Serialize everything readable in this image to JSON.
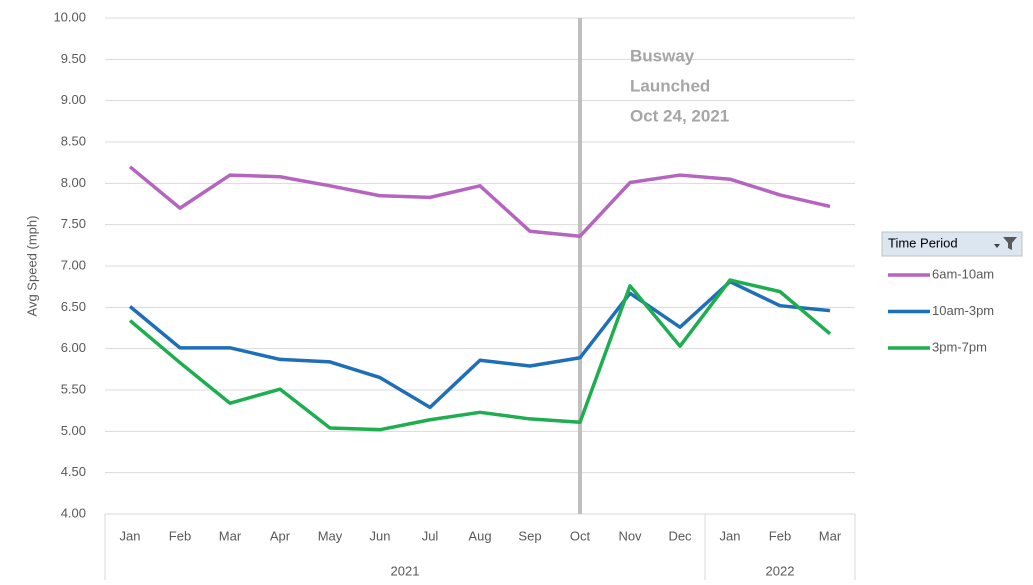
{
  "chart_data": {
    "type": "line",
    "ylabel": "Avg Speed (mph)",
    "categories": [
      "Jan",
      "Feb",
      "Mar",
      "Apr",
      "May",
      "Jun",
      "Jul",
      "Aug",
      "Sep",
      "Oct",
      "Nov",
      "Dec",
      "Jan",
      "Feb",
      "Mar"
    ],
    "category_groups": [
      {
        "label": "2021",
        "span": 12
      },
      {
        "label": "2022",
        "span": 3
      }
    ],
    "ylim": [
      4,
      10
    ],
    "yticks": [
      {
        "value": 4,
        "label": "4.00"
      },
      {
        "value": 4.5,
        "label": "4.50"
      },
      {
        "value": 5,
        "label": "5.00"
      },
      {
        "value": 5.5,
        "label": "5.50"
      },
      {
        "value": 6,
        "label": "6.00"
      },
      {
        "value": 6.5,
        "label": "6.50"
      },
      {
        "value": 7,
        "label": "7.00"
      },
      {
        "value": 7.5,
        "label": "7.50"
      },
      {
        "value": 8,
        "label": "8.00"
      },
      {
        "value": 8.5,
        "label": "8.50"
      },
      {
        "value": 9,
        "label": "9.00"
      },
      {
        "value": 9.5,
        "label": "9.50"
      },
      {
        "value": 10,
        "label": "10.00"
      }
    ],
    "grid": true,
    "legend_title": "Time Period",
    "legend": "right",
    "annotation": {
      "lines": [
        "Busway",
        "Launched",
        "Oct 24, 2021"
      ],
      "category_index": 9,
      "color": "#bfbfbf"
    },
    "series": [
      {
        "name": "6am-10am",
        "color": "#b565c0",
        "values": [
          8.2,
          7.7,
          8.1,
          8.08,
          7.97,
          7.85,
          7.83,
          7.97,
          7.42,
          7.36,
          8.01,
          8.1,
          8.05,
          7.86,
          7.72
        ]
      },
      {
        "name": "10am-3pm",
        "color": "#1f6fb8",
        "values": [
          6.51,
          6.01,
          6.01,
          5.87,
          5.84,
          5.65,
          5.29,
          5.86,
          5.79,
          5.89,
          6.67,
          6.26,
          6.81,
          6.52,
          6.46
        ]
      },
      {
        "name": "3pm-7pm",
        "color": "#1ead4f",
        "values": [
          6.34,
          5.83,
          5.34,
          5.51,
          5.04,
          5.02,
          5.14,
          5.23,
          5.15,
          5.11,
          6.76,
          6.03,
          6.83,
          6.69,
          6.18
        ]
      }
    ]
  }
}
